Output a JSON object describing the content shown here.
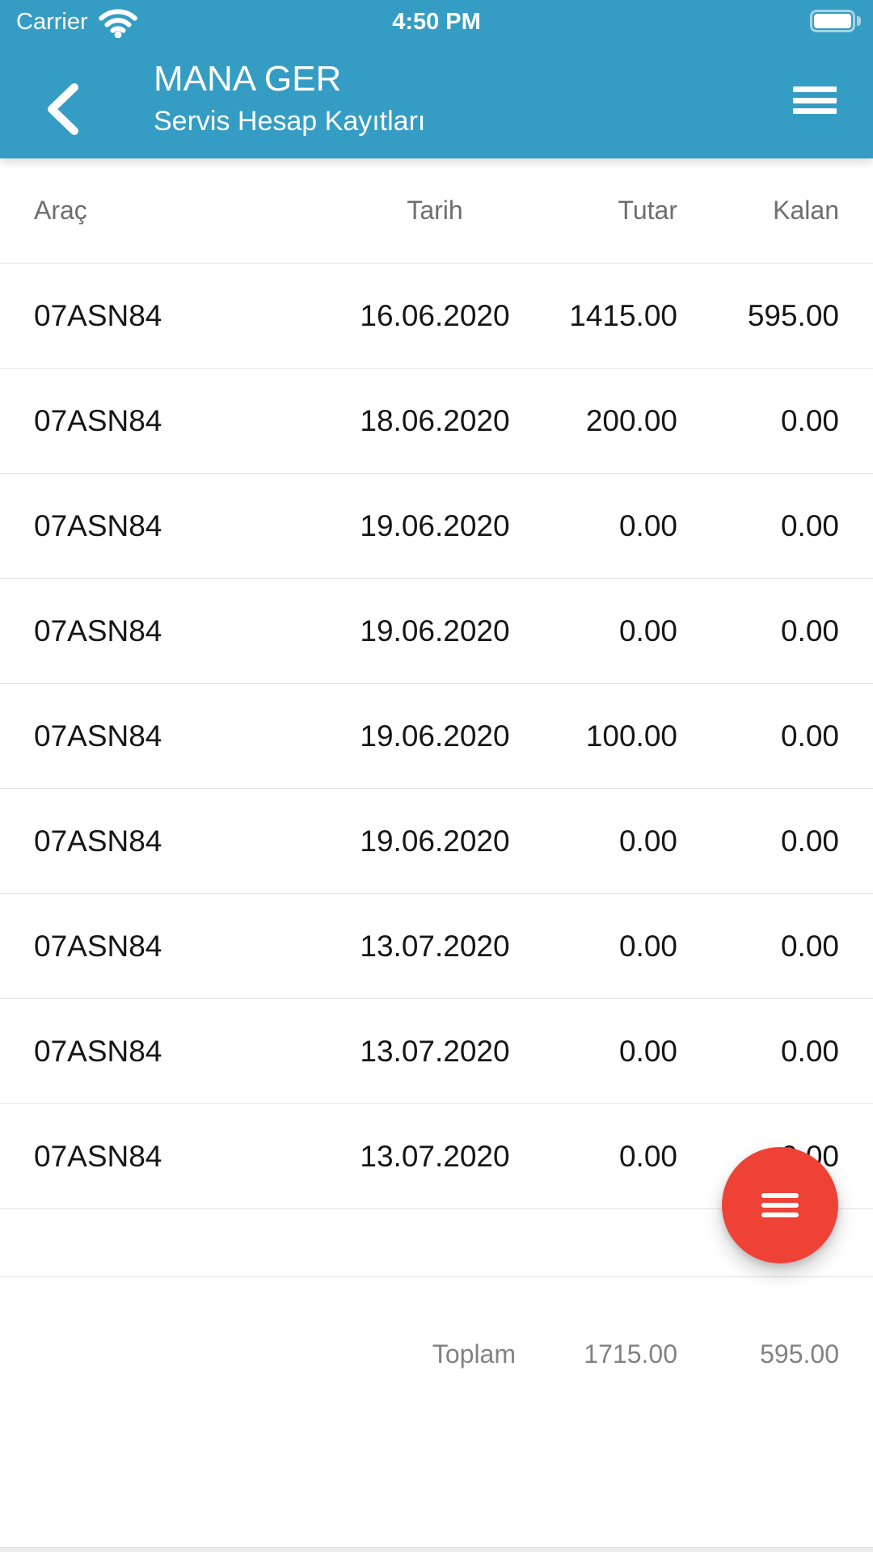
{
  "status_bar": {
    "carrier": "Carrier",
    "time": "4:50 PM",
    "wifi_icon": "wifi-icon",
    "battery_icon": "battery-full-icon"
  },
  "navbar": {
    "title": "MANA GER",
    "subtitle": "Servis Hesap Kayıtları",
    "back_icon": "chevron-left-icon",
    "menu_icon": "hamburger-menu-icon"
  },
  "table": {
    "columns": [
      "Araç",
      "Tarih",
      "Tutar",
      "Kalan"
    ],
    "rows": [
      {
        "arac": "07ASN84",
        "tarih": "16.06.2020",
        "tutar": "1415.00",
        "kalan": "595.00"
      },
      {
        "arac": "07ASN84",
        "tarih": "18.06.2020",
        "tutar": "200.00",
        "kalan": "0.00"
      },
      {
        "arac": "07ASN84",
        "tarih": "19.06.2020",
        "tutar": "0.00",
        "kalan": "0.00"
      },
      {
        "arac": "07ASN84",
        "tarih": "19.06.2020",
        "tutar": "0.00",
        "kalan": "0.00"
      },
      {
        "arac": "07ASN84",
        "tarih": "19.06.2020",
        "tutar": "100.00",
        "kalan": "0.00"
      },
      {
        "arac": "07ASN84",
        "tarih": "19.06.2020",
        "tutar": "0.00",
        "kalan": "0.00"
      },
      {
        "arac": "07ASN84",
        "tarih": "13.07.2020",
        "tutar": "0.00",
        "kalan": "0.00"
      },
      {
        "arac": "07ASN84",
        "tarih": "13.07.2020",
        "tutar": "0.00",
        "kalan": "0.00"
      },
      {
        "arac": "07ASN84",
        "tarih": "13.07.2020",
        "tutar": "0.00",
        "kalan": "0.00"
      }
    ],
    "footer": {
      "label": "Toplam",
      "tutar": "1715.00",
      "kalan": "595.00"
    }
  },
  "fab": {
    "icon": "hamburger-menu-icon"
  },
  "colors": {
    "header_teal": "#359dc4",
    "fab_red": "#ee4237",
    "row_text": "#161616",
    "header_text": "#6e6e6e",
    "footer_text": "#828282",
    "divider": "#e3e3e3"
  }
}
